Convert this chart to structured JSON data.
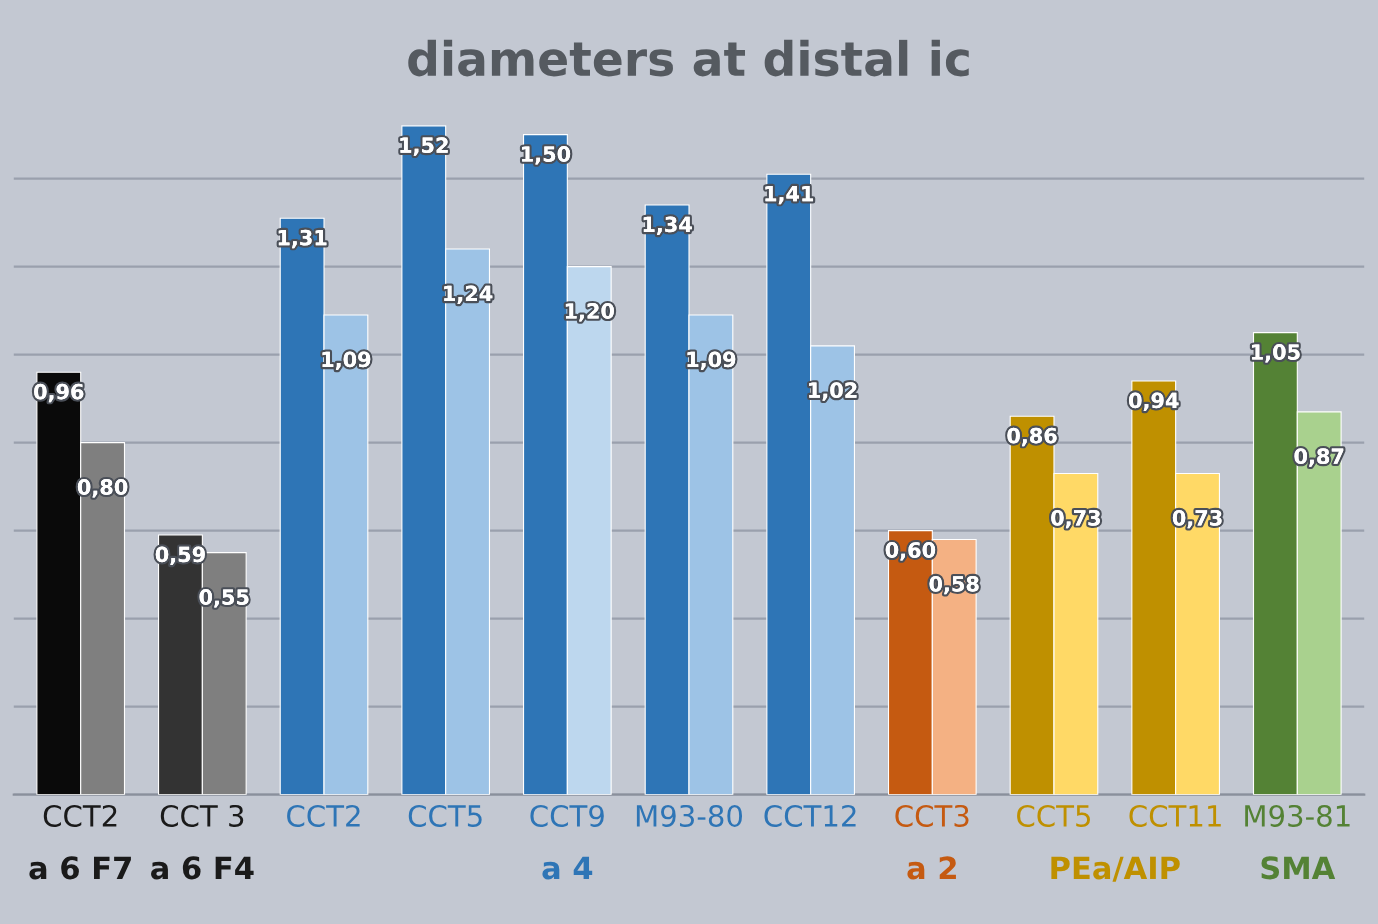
{
  "chart_data": {
    "type": "bar",
    "title": "diameters at distal ic",
    "categories": [
      "CCT2",
      "CCT 3",
      "CCT2",
      "CCT5",
      "CCT9",
      "M93-80",
      "CCT12",
      "CCT3",
      "CCT5",
      "CCT11",
      "M93-81"
    ],
    "series": [
      {
        "colors": [
          "#0a0a0a",
          "#333333",
          "#2e75b6",
          "#2e75b6",
          "#2e75b6",
          "#2e75b6",
          "#2e75b6",
          "#c55a11",
          "#bf9000",
          "#bf9000",
          "#548235"
        ],
        "values": [
          0.96,
          0.59,
          1.31,
          1.52,
          1.5,
          1.34,
          1.41,
          0.6,
          0.86,
          0.94,
          1.05
        ],
        "value_labels": [
          "0,96",
          "0,59",
          "1,31",
          "1,52",
          "1,50",
          "1,34",
          "1,41",
          "0,60",
          "0,86",
          "0,94",
          "1,05"
        ]
      },
      {
        "colors": [
          "#7f7f7f",
          "#7f7f7f",
          "#9dc3e6",
          "#9dc3e6",
          "#bdd7ee",
          "#9dc3e6",
          "#9dc3e6",
          "#f4b183",
          "#ffd966",
          "#ffd966",
          "#a9d18e"
        ],
        "values": [
          0.8,
          0.55,
          1.09,
          1.24,
          1.2,
          1.09,
          1.02,
          0.58,
          0.73,
          0.73,
          0.87
        ],
        "value_labels": [
          "0,80",
          "0,55",
          "1,09",
          "1,24",
          "1,20",
          "1,09",
          "1,02",
          "0,58",
          "0,73",
          "0,73",
          "0,87"
        ]
      }
    ],
    "annotations": [
      "a 6 F7",
      "a 6 F4",
      "a 4",
      "a 2",
      "PEa/AIP",
      "SMA"
    ],
    "tick_labels": "x",
    "grid": "y",
    "legend": false
  }
}
